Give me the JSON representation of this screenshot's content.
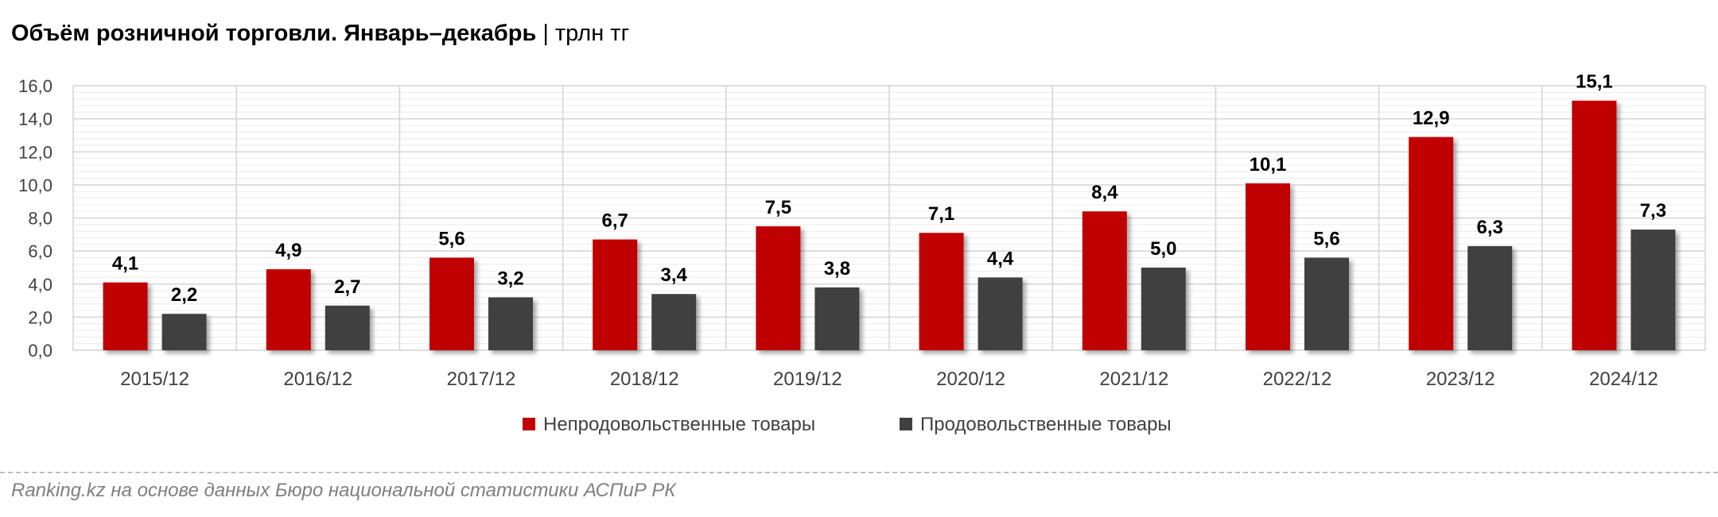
{
  "title": {
    "main": "Объём розничной торговли. Январь–декабрь",
    "separator": "|",
    "unit": "трлн тг"
  },
  "chart_data": {
    "type": "bar",
    "categories": [
      "2015/12",
      "2016/12",
      "2017/12",
      "2018/12",
      "2019/12",
      "2020/12",
      "2021/12",
      "2022/12",
      "2023/12",
      "2024/12"
    ],
    "series": [
      {
        "name": "Непродовольственные товары",
        "color": "#C00000",
        "values": [
          4.1,
          4.9,
          5.6,
          6.7,
          7.5,
          7.1,
          8.4,
          10.1,
          12.9,
          15.1
        ]
      },
      {
        "name": "Продовольственные товары",
        "color": "#404040",
        "values": [
          2.2,
          2.7,
          3.2,
          3.4,
          3.8,
          4.4,
          5.0,
          5.6,
          6.3,
          7.3
        ]
      }
    ],
    "yticks": [
      "0,0",
      "2,0",
      "4,0",
      "6,0",
      "8,0",
      "10,0",
      "12,0",
      "14,0",
      "16,0"
    ],
    "ylim": [
      0,
      16
    ],
    "legend_position": "bottom",
    "grid": true
  },
  "source": "Ranking.kz на основе данных Бюро национальной статистики АСПиР РК"
}
